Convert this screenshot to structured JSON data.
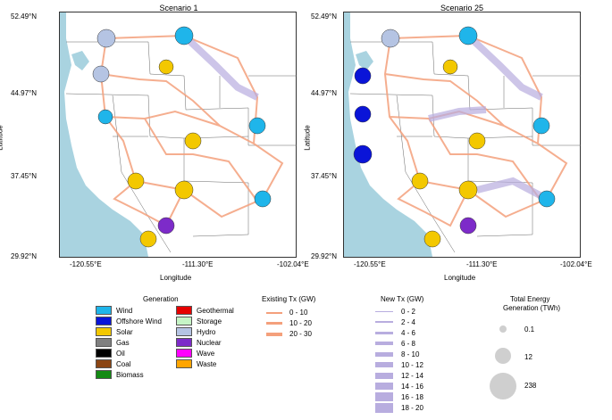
{
  "panels": [
    {
      "title": "Scenario 1"
    },
    {
      "title": "Scenario 25"
    }
  ],
  "axes": {
    "xlabel": "Longitude",
    "ylabel": "Latitude",
    "y_ticks": [
      "52.49°N",
      "44.97°N",
      "37.45°N",
      "29.92°N"
    ],
    "x_ticks": [
      "-120.55°E",
      "-111.30°E",
      "-102.04°E"
    ]
  },
  "legend": {
    "generation_title": "Generation",
    "generation_items": [
      {
        "label": "Wind",
        "color": "#1fb5ea"
      },
      {
        "label": "Offshore Wind",
        "color": "#0a14d8"
      },
      {
        "label": "Solar",
        "color": "#f3c800"
      },
      {
        "label": "Gas",
        "color": "#808080"
      },
      {
        "label": "Oil",
        "color": "#000000"
      },
      {
        "label": "Coal",
        "color": "#8b4513"
      },
      {
        "label": "Biomass",
        "color": "#138a13"
      },
      {
        "label": "Geothermal",
        "color": "#e60000"
      },
      {
        "label": "Storage",
        "color": "#c6f5c6"
      },
      {
        "label": "Hydro",
        "color": "#b5c4e3"
      },
      {
        "label": "Nuclear",
        "color": "#7d2bc9"
      },
      {
        "label": "Wave",
        "color": "#ff00ff"
      },
      {
        "label": "Waste",
        "color": "#ffa500"
      }
    ],
    "existing_tx_title": "Existing Tx (GW)",
    "existing_tx_items": [
      "0 - 10",
      "10 - 20",
      "20 - 30"
    ],
    "new_tx_title": "New Tx (GW)",
    "new_tx_items": [
      "0 - 2",
      "2 - 4",
      "4 - 6",
      "6 - 8",
      "8 - 10",
      "10 - 12",
      "12 - 14",
      "14 - 16",
      "16 - 18",
      "18 - 20"
    ],
    "total_title_line1": "Total Energy",
    "total_title_line2": "Generation (TWh)",
    "total_items": [
      "0.1",
      "12",
      "238"
    ]
  },
  "colors": {
    "ocean": "#a9d3e0",
    "land": "#ffffff",
    "existing_tx": "#f4a07c",
    "new_tx": "#b8addf"
  }
}
